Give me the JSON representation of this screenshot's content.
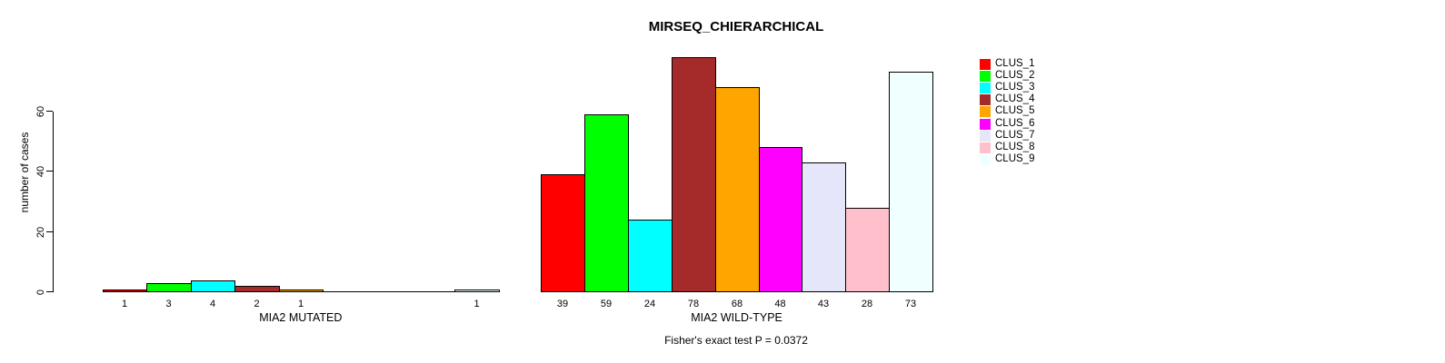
{
  "figure": {
    "background": "#ffffff",
    "text_color": "#000000"
  },
  "chart_data": {
    "type": "bar",
    "title": "MIRSEQ_CHIERARCHICAL",
    "ylabel": "number of cases",
    "xlabel": "",
    "ylim": [
      0,
      79
    ],
    "y_ticks": [
      0,
      20,
      40,
      60
    ],
    "grid": false,
    "legend_position": "right-outside",
    "bar_border_color": "#000000",
    "clusters": [
      {
        "name": "CLUS_1",
        "color": "#FF0000"
      },
      {
        "name": "CLUS_2",
        "color": "#00FF00"
      },
      {
        "name": "CLUS_3",
        "color": "#00FFFF"
      },
      {
        "name": "CLUS_4",
        "color": "#A52A2A"
      },
      {
        "name": "CLUS_5",
        "color": "#FFA500"
      },
      {
        "name": "CLUS_6",
        "color": "#FF00FF"
      },
      {
        "name": "CLUS_7",
        "color": "#E6E6FA"
      },
      {
        "name": "CLUS_8",
        "color": "#FFC0CB"
      },
      {
        "name": "CLUS_9",
        "color": "#F0FFFF"
      }
    ],
    "groups": [
      {
        "label": "MIA2 MUTATED",
        "values": [
          1,
          3,
          4,
          2,
          1,
          0,
          0,
          0,
          1
        ]
      },
      {
        "label": "MIA2 WILD-TYPE",
        "values": [
          39,
          59,
          24,
          78,
          68,
          48,
          43,
          28,
          73
        ]
      }
    ],
    "bar_value_labels_shown_for_nonzero_only": true,
    "annotation": "Fisher's exact test P = 0.0372"
  }
}
